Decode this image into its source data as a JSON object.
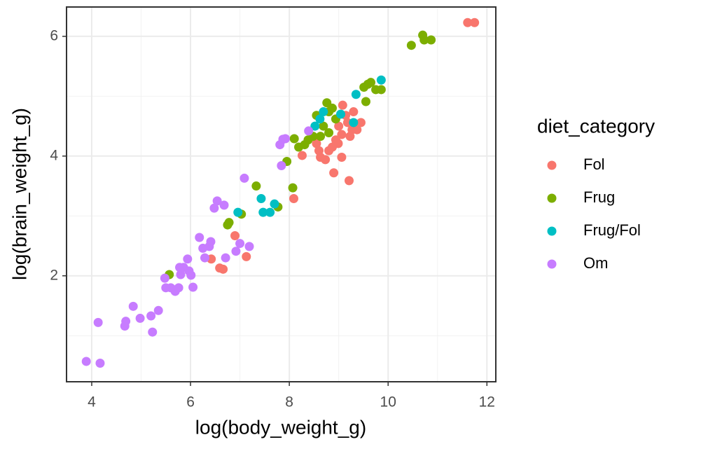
{
  "chart_data": {
    "type": "scatter",
    "x_label": "log(body_weight_g)",
    "y_label": "log(brain_weight_g)",
    "legend_title": "diet_category",
    "xlim": [
      3.49,
      12.18
    ],
    "ylim": [
      0.23,
      6.49
    ],
    "xticks": [
      4,
      6,
      8,
      10,
      12
    ],
    "yticks": [
      2,
      4,
      6
    ],
    "xminor": [
      5,
      7,
      9,
      11
    ],
    "yminor": [
      1,
      3,
      5
    ],
    "grid": true,
    "legend": "right",
    "series": [
      {
        "name": "Fol",
        "color": "#F8766D",
        "x": [
          11.61,
          11.75,
          6.42,
          6.59,
          6.66,
          6.9,
          7.13,
          8.09,
          8.26,
          8.55,
          8.6,
          8.63,
          8.73,
          8.8,
          8.87,
          8.9,
          8.99,
          9.06,
          9.08,
          9.14,
          9.18,
          9.21,
          9.3,
          9.27,
          9.06,
          9.0,
          9.45,
          9.37,
          9.23,
          8.94
        ],
        "y": [
          6.23,
          6.23,
          2.28,
          2.13,
          2.11,
          2.67,
          2.32,
          3.29,
          4.01,
          4.21,
          4.09,
          3.98,
          3.94,
          4.09,
          4.15,
          3.72,
          4.21,
          3.98,
          4.85,
          4.68,
          4.56,
          3.59,
          4.74,
          4.44,
          4.36,
          4.5,
          4.56,
          4.44,
          4.33,
          4.27
        ]
      },
      {
        "name": "Frug",
        "color": "#7CAE00",
        "x": [
          10.47,
          10.7,
          10.73,
          10.87,
          5.57,
          6.75,
          6.78,
          7.03,
          7.33,
          7.77,
          8.07,
          7.95,
          8.1,
          8.19,
          8.31,
          8.38,
          8.48,
          8.55,
          8.69,
          8.76,
          8.8,
          8.87,
          8.94,
          8.8,
          8.63,
          9.51,
          9.59,
          9.65,
          9.75,
          9.86,
          9.55
        ],
        "y": [
          5.85,
          6.02,
          5.94,
          5.94,
          2.02,
          2.85,
          2.89,
          3.03,
          3.5,
          3.15,
          3.47,
          3.91,
          4.29,
          4.15,
          4.19,
          4.27,
          4.33,
          4.68,
          4.5,
          4.89,
          4.74,
          4.8,
          4.62,
          4.39,
          4.33,
          5.15,
          5.2,
          5.23,
          5.11,
          5.11,
          4.91
        ]
      },
      {
        "name": "Frug/Fol",
        "color": "#00BFC4",
        "x": [
          9.86,
          7.43,
          7.47,
          7.61,
          7.7,
          6.96,
          8.52,
          8.62,
          8.69,
          9.35,
          9.3,
          9.04
        ],
        "y": [
          5.27,
          3.29,
          3.06,
          3.06,
          3.2,
          3.06,
          4.5,
          4.62,
          4.74,
          5.03,
          4.56,
          4.7
        ]
      },
      {
        "name": "Om",
        "color": "#C77CFF",
        "x": [
          3.89,
          4.17,
          4.13,
          4.67,
          4.69,
          4.84,
          4.98,
          5.2,
          5.23,
          5.35,
          5.48,
          5.5,
          5.6,
          5.69,
          5.76,
          5.8,
          5.86,
          5.94,
          5.97,
          6.01,
          6.05,
          5.78,
          6.18,
          6.25,
          6.29,
          6.38,
          6.41,
          6.48,
          6.54,
          6.68,
          6.71,
          6.92,
          7.0,
          7.19,
          7.09,
          7.84,
          7.81,
          7.87,
          7.92,
          8.39
        ],
        "y": [
          0.57,
          0.54,
          1.22,
          1.16,
          1.24,
          1.49,
          1.29,
          1.33,
          1.06,
          1.42,
          1.96,
          1.8,
          1.8,
          1.74,
          1.8,
          2.02,
          2.14,
          2.28,
          2.08,
          2.01,
          1.81,
          2.14,
          2.64,
          2.46,
          2.3,
          2.49,
          2.57,
          3.13,
          3.25,
          3.18,
          2.3,
          2.41,
          2.54,
          2.49,
          3.63,
          3.84,
          4.19,
          4.28,
          4.29,
          4.42
        ]
      }
    ]
  }
}
